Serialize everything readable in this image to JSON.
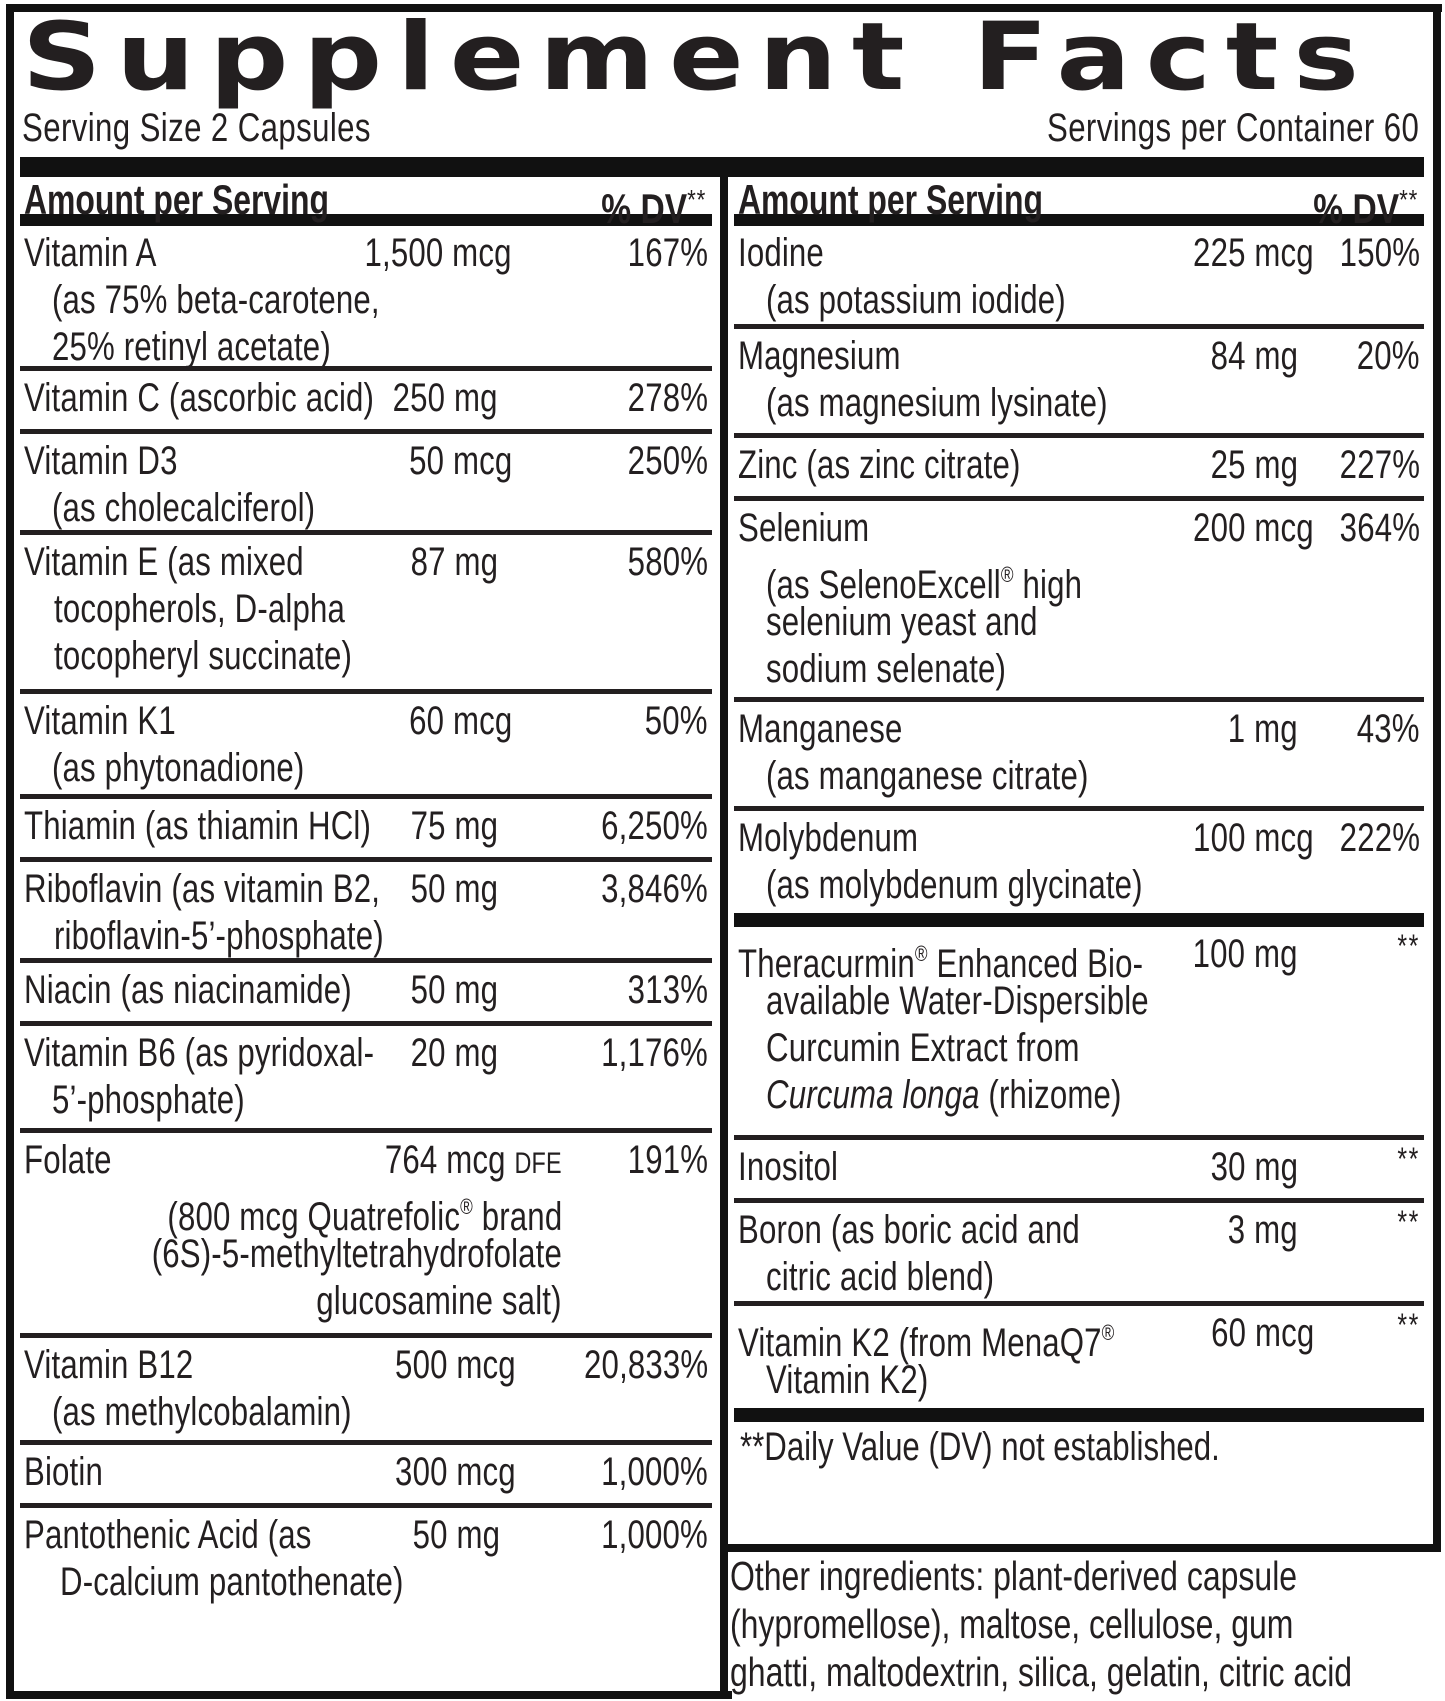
{
  "title": "Supplement Facts",
  "serving_size": "Serving Size 2 Capsules",
  "servings_per_container": "Servings per Container 60",
  "header": {
    "amount_label": "Amount per Serving",
    "dv_label": "% DV",
    "dv_marker": "**"
  },
  "left_column": [
    {
      "name": "Vitamin A",
      "sub": [
        "(as 75% beta-carotene,",
        "25% retinyl acetate)"
      ],
      "amount": "1,500 mcg",
      "dv": "167%"
    },
    {
      "name": "Vitamin C (ascorbic acid)",
      "sub": [],
      "amount": "250 mg",
      "dv": "278%"
    },
    {
      "name": "Vitamin D3",
      "sub": [
        "(as cholecalciferol)"
      ],
      "amount": "50 mcg",
      "dv": "250%"
    },
    {
      "name": "Vitamin E (as mixed",
      "sub": [
        "tocopherols, D-alpha",
        "tocopheryl succinate)"
      ],
      "amount": "87 mg",
      "dv": "580%"
    },
    {
      "name": "Vitamin K1",
      "sub": [
        "(as phytonadione)"
      ],
      "amount": "60 mcg",
      "dv": "50%"
    },
    {
      "name": "Thiamin (as thiamin HCl)",
      "sub": [],
      "amount": "75 mg",
      "dv": "6,250%"
    },
    {
      "name": "Riboflavin (as vitamin B2,",
      "sub": [
        "riboflavin-5’-phosphate)"
      ],
      "amount": "50 mg",
      "dv": "3,846%"
    },
    {
      "name": "Niacin (as niacinamide)",
      "sub": [],
      "amount": "50 mg",
      "dv": "313%"
    },
    {
      "name": "Vitamin B6 (as pyridoxal-",
      "sub": [
        "5’-phosphate)"
      ],
      "amount": "20 mg",
      "dv": "1,176%"
    },
    {
      "name": "Folate",
      "sub": [
        "(800 mcg Quatrefolic® brand",
        "(6S)-5-methyltetrahydrofolate",
        "glucosamine salt)"
      ],
      "amount": "764 mcg",
      "amount_unit_suffix": "DFE",
      "dv": "191%"
    },
    {
      "name": "Vitamin B12",
      "sub": [
        "(as methylcobalamin)"
      ],
      "amount": "500 mcg",
      "dv": "20,833%"
    },
    {
      "name": "Biotin",
      "sub": [],
      "amount": "300 mcg",
      "dv": "1,000%"
    },
    {
      "name": "Pantothenic Acid (as",
      "sub": [
        "D-calcium pantothenate)"
      ],
      "amount": "50 mg",
      "dv": "1,000%"
    }
  ],
  "right_column": [
    {
      "name": "Iodine",
      "sub": [
        "(as potassium iodide)"
      ],
      "amount": "225 mcg",
      "dv": "150%"
    },
    {
      "name": "Magnesium",
      "sub": [
        "(as magnesium lysinate)"
      ],
      "amount": "84 mg",
      "dv": "20%"
    },
    {
      "name": "Zinc (as zinc citrate)",
      "sub": [],
      "amount": "25 mg",
      "dv": "227%"
    },
    {
      "name": "Selenium",
      "sub": [
        "(as SelenoExcell® high",
        "selenium yeast and",
        "sodium selenate)"
      ],
      "amount": "200 mcg",
      "dv": "364%"
    },
    {
      "name": "Manganese",
      "sub": [
        "(as manganese citrate)"
      ],
      "amount": "1 mg",
      "dv": "43%"
    },
    {
      "name": "Molybdenum",
      "sub": [
        "(as molybdenum glycinate)"
      ],
      "amount": "100 mcg",
      "dv": "222%"
    },
    {
      "name": "Theracurmin® Enhanced Bio-",
      "sub": [
        "available Water-Dispersible",
        "Curcumin Extract from"
      ],
      "sub_italic": "Curcuma longa",
      "sub_tail": " (rhizome)",
      "amount": "100 mg",
      "dv": "**"
    },
    {
      "name": "Inositol",
      "sub": [],
      "amount": "30 mg",
      "dv": "**"
    },
    {
      "name": "Boron (as boric acid and",
      "sub": [
        "citric acid blend)"
      ],
      "amount": "3 mg",
      "dv": "**"
    },
    {
      "name": "Vitamin K2 (from MenaQ7®",
      "sub": [
        "Vitamin K2)"
      ],
      "amount": "60 mcg",
      "dv": "**"
    }
  ],
  "footnote": "**Daily Value (DV) not established.",
  "other_ingredients": [
    "Other ingredients: plant-derived capsule",
    "(hypromellose), maltose, cellulose, gum",
    "ghatti, maltodextrin, silica, gelatin, citric acid"
  ]
}
